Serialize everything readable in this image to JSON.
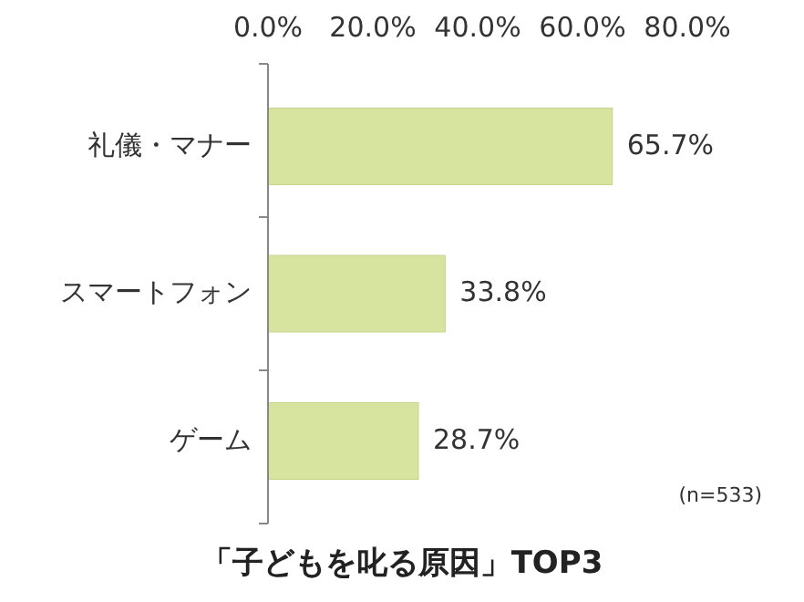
{
  "chart_data": {
    "type": "bar",
    "orientation": "horizontal",
    "title": "「子どもを叱る原因」TOP3",
    "categories": [
      "礼儀・マナー",
      "スマートフォン",
      "ゲーム"
    ],
    "values": [
      65.7,
      33.8,
      28.7
    ],
    "value_labels": [
      "65.7%",
      "33.8%",
      "28.7%"
    ],
    "color": "#d7e4a0",
    "xlim": [
      0,
      80
    ],
    "xticks": [
      {
        "value": 0,
        "label": "0.0%"
      },
      {
        "value": 20,
        "label": "20.0%"
      },
      {
        "value": 40,
        "label": "40.0%"
      },
      {
        "value": 60,
        "label": "60.0%"
      },
      {
        "value": 80,
        "label": "80.0%"
      }
    ],
    "annotations": [
      "(n=533)"
    ]
  }
}
